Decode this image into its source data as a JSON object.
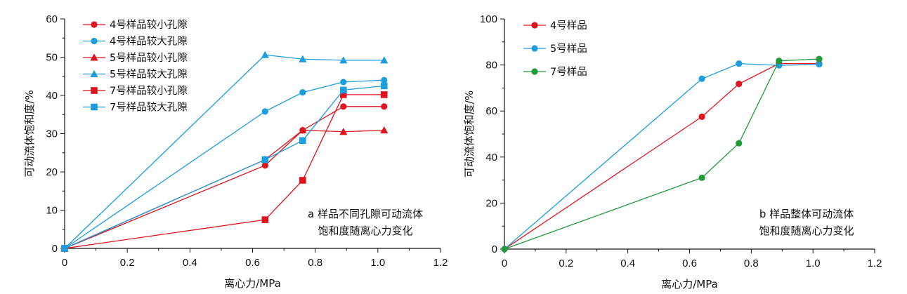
{
  "chart_data": [
    {
      "type": "line",
      "caption_lines": [
        "a 样品不同孔隙可动流体",
        "饱和度随离心力变化"
      ],
      "xlabel": "离心力/MPa",
      "ylabel": "可动流体饱和度/%",
      "xlim": [
        0,
        1.2
      ],
      "ylim": [
        0,
        60
      ],
      "xticks": [
        "0",
        "0.2",
        "0.4",
        "0.6",
        "0.8",
        "1.0",
        "1.2"
      ],
      "yticks": [
        "0",
        "10",
        "20",
        "30",
        "40",
        "50",
        "60"
      ],
      "legend_position": "top-left",
      "grid": false,
      "series": [
        {
          "name": "4号样品较小孔隙",
          "color": "#e0141e",
          "marker": "circle",
          "x": [
            0,
            0.64,
            0.76,
            0.89,
            1.02
          ],
          "y": [
            0,
            21.7,
            30.9,
            37.1,
            37.1
          ]
        },
        {
          "name": "4号样品较大孔隙",
          "color": "#1a9ee0",
          "marker": "circle",
          "x": [
            0,
            0.64,
            0.76,
            0.89,
            1.02
          ],
          "y": [
            0,
            35.8,
            40.8,
            43.5,
            44.0
          ]
        },
        {
          "name": "5号样品较小孔隙",
          "color": "#e0141e",
          "marker": "triangle",
          "x": [
            0,
            0.64,
            0.76,
            0.89,
            1.02
          ],
          "y": [
            0,
            23.2,
            30.9,
            30.5,
            30.9
          ]
        },
        {
          "name": "5号样品较大孔隙",
          "color": "#1a9ee0",
          "marker": "triangle",
          "x": [
            0,
            0.64,
            0.76,
            0.89,
            1.02
          ],
          "y": [
            0,
            50.6,
            49.5,
            49.2,
            49.2
          ]
        },
        {
          "name": "7号样品较小孔隙",
          "color": "#e0141e",
          "marker": "square",
          "x": [
            0,
            0.64,
            0.76,
            0.89,
            1.02
          ],
          "y": [
            0,
            7.5,
            17.8,
            40.2,
            40.2
          ]
        },
        {
          "name": "7号样品较大孔隙",
          "color": "#1a9ee0",
          "marker": "square",
          "x": [
            0,
            0.64,
            0.76,
            0.89,
            1.02
          ],
          "y": [
            0,
            23.2,
            28.2,
            41.4,
            42.5
          ]
        }
      ]
    },
    {
      "type": "line",
      "caption_lines": [
        "b 样品整体可动流体",
        "饱和度随离心力变化"
      ],
      "xlabel": "离心力/MPa",
      "ylabel": "可动流体饱和度/%",
      "xlim": [
        0,
        1.2
      ],
      "ylim": [
        0,
        100
      ],
      "xticks": [
        "0",
        "0.2",
        "0.4",
        "0.6",
        "0.8",
        "1.0",
        "1.2"
      ],
      "yticks": [
        "0",
        "20",
        "40",
        "60",
        "80",
        "100"
      ],
      "legend_position": "top-left",
      "grid": false,
      "series": [
        {
          "name": "4号样品",
          "color": "#e0141e",
          "marker": "circle",
          "x": [
            0,
            0.64,
            0.76,
            0.89,
            1.02
          ],
          "y": [
            0,
            57.5,
            71.8,
            80.6,
            80.6
          ]
        },
        {
          "name": "5号样品",
          "color": "#1a9ee0",
          "marker": "circle",
          "x": [
            0,
            0.64,
            0.76,
            0.89,
            1.02
          ],
          "y": [
            0,
            74.0,
            80.6,
            79.8,
            80.3
          ]
        },
        {
          "name": "7号样品",
          "color": "#1e9a3a",
          "marker": "circle",
          "x": [
            0,
            0.64,
            0.76,
            0.89,
            1.02
          ],
          "y": [
            0,
            31.0,
            46.0,
            81.8,
            82.6
          ]
        }
      ]
    }
  ]
}
